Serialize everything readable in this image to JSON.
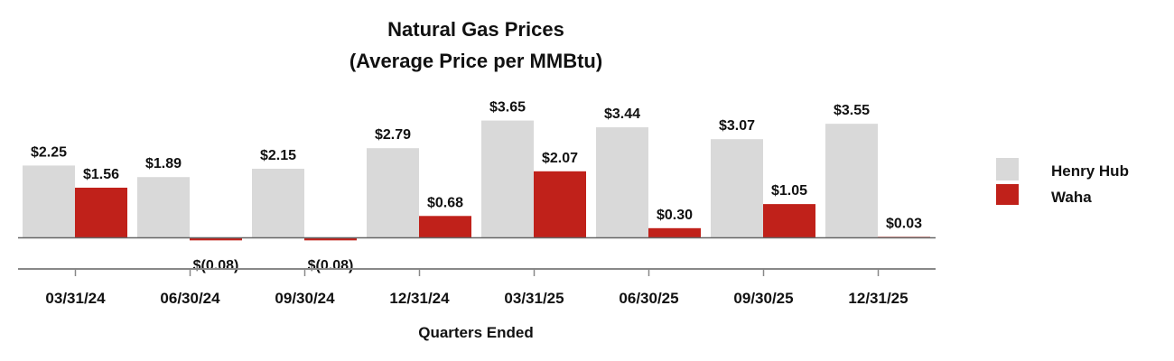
{
  "chart_data": {
    "type": "bar",
    "title": "Natural Gas Prices",
    "subtitle": "(Average Price per MMBtu)",
    "xlabel": "Quarters Ended",
    "ylabel": "",
    "categories": [
      "03/31/24",
      "06/30/24",
      "09/30/24",
      "12/31/24",
      "03/31/25",
      "06/30/25",
      "09/30/25",
      "12/31/25"
    ],
    "series": [
      {
        "name": "Henry Hub",
        "color": "#d9d9d9",
        "values": [
          2.25,
          1.89,
          2.15,
          2.79,
          3.65,
          3.44,
          3.07,
          3.55
        ],
        "labels": [
          "$2.25",
          "$1.89",
          "$2.15",
          "$2.79",
          "$3.65",
          "$3.44",
          "$3.07",
          "$3.55"
        ]
      },
      {
        "name": "Waha",
        "color": "#c0211a",
        "values": [
          1.56,
          -0.08,
          -0.08,
          0.68,
          2.07,
          0.3,
          1.05,
          0.03
        ],
        "labels": [
          "$1.56",
          "$(0.08)",
          "$(0.08)",
          "$0.68",
          "$2.07",
          "$0.30",
          "$1.05",
          "$0.03"
        ]
      }
    ],
    "ylim": [
      -0.8,
      4.0
    ],
    "grid": false,
    "legend_position": "right"
  }
}
